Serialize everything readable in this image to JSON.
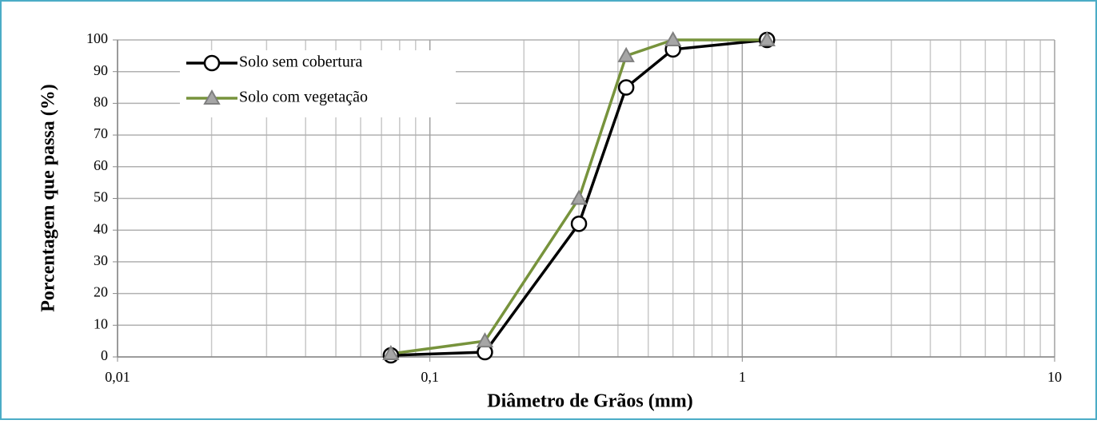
{
  "chart_data": {
    "type": "line",
    "xlabel": "Diâmetro de Grãos (mm)",
    "ylabel": "Porcentagem que passa (%)",
    "xscale": "log",
    "xlim": [
      0.01,
      10
    ],
    "ylim": [
      0,
      100
    ],
    "xticks": [
      {
        "value": 0.01,
        "label": "0,01"
      },
      {
        "value": 0.1,
        "label": "0,1"
      },
      {
        "value": 1,
        "label": "1"
      },
      {
        "value": 10,
        "label": "10"
      }
    ],
    "xminorticks": [
      0.02,
      0.03,
      0.04,
      0.05,
      0.06,
      0.07,
      0.08,
      0.09,
      0.2,
      0.3,
      0.4,
      0.5,
      0.6,
      0.7,
      0.8,
      0.9,
      2,
      3,
      4,
      5,
      6,
      7,
      8,
      9
    ],
    "yticks": [
      0,
      10,
      20,
      30,
      40,
      50,
      60,
      70,
      80,
      90,
      100
    ],
    "grid": true,
    "legend": "upper left",
    "x": [
      0.075,
      0.15,
      0.3,
      0.425,
      0.6,
      1.2
    ],
    "series": [
      {
        "name": "Solo sem cobertura",
        "color": "#000000",
        "marker": "circle",
        "marker_color": "#ffffff",
        "values": [
          0.5,
          1.5,
          42,
          85,
          97,
          100
        ]
      },
      {
        "name": "Solo com vegetação",
        "color": "#77933c",
        "marker": "triangle",
        "marker_color": "#a6a6a6",
        "values": [
          1,
          5,
          50,
          95,
          100,
          100
        ]
      }
    ]
  }
}
